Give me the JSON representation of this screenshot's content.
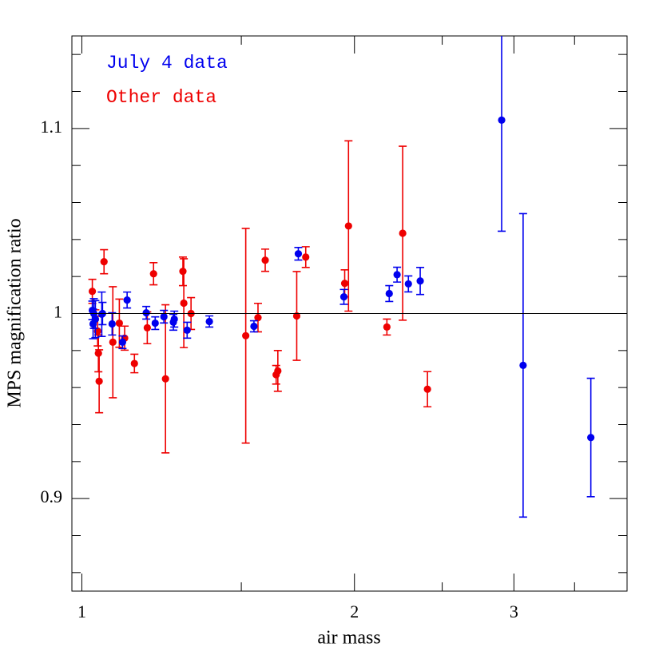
{
  "chart_data": {
    "type": "scatter",
    "x_label": "air mass",
    "y_label": "MPS magnification ratio",
    "xlim": [
      0.975,
      4
    ],
    "ylim": [
      0.85,
      1.15
    ],
    "xscale": "log",
    "xticks": [
      1,
      2,
      3
    ],
    "xminorticks": [
      1.5,
      2.5,
      3.5
    ],
    "yticks": [
      0.9,
      1,
      1.1
    ],
    "yminorticks": [
      0.86,
      0.88,
      0.92,
      0.94,
      0.96,
      0.98,
      1.02,
      1.04,
      1.06,
      1.08,
      1.12,
      1.14
    ],
    "hline": 1,
    "legend": "upper left",
    "series": [
      {
        "name": "July 4 data",
        "color": "#0000ee",
        "x": [
          1.027,
          1.029,
          1.031,
          1.035,
          1.052,
          1.054,
          1.08,
          1.109,
          1.122,
          1.178,
          1.205,
          1.232,
          1.262,
          1.265,
          1.307,
          1.383,
          1.549,
          1.734,
          1.947,
          2.185,
          2.229,
          2.294,
          2.364,
          2.908,
          3.071,
          3.648
        ],
        "values": [
          1.0017,
          0.9944,
          1.0,
          0.997,
          0.9996,
          1.0,
          0.9944,
          0.9845,
          1.0073,
          1.0004,
          0.9948,
          0.9983,
          0.9953,
          0.997,
          0.991,
          0.9957,
          0.9931,
          1.0323,
          1.009,
          1.0108,
          1.021,
          1.016,
          1.0176,
          1.1045,
          0.972,
          0.933
        ],
        "errors": [
          0.005,
          0.008,
          0.008,
          0.01,
          0.012,
          0.006,
          0.006,
          0.0034,
          0.0043,
          0.0034,
          0.0034,
          0.0034,
          0.0043,
          0.0043,
          0.0043,
          0.003,
          0.003,
          0.0034,
          0.004,
          0.0043,
          0.004,
          0.0043,
          0.0073,
          0.06,
          0.082,
          0.032
        ]
      },
      {
        "name": "Other data",
        "color": "#ee0000",
        "x": [
          1.027,
          1.035,
          1.041,
          1.043,
          1.045,
          1.058,
          1.082,
          1.1,
          1.115,
          1.143,
          1.181,
          1.2,
          1.237,
          1.293,
          1.296,
          1.32,
          1.517,
          1.565,
          1.594,
          1.639,
          1.646,
          1.727,
          1.767,
          1.951,
          1.97,
          2.172,
          2.261,
          2.408
        ],
        "values": [
          1.012,
          0.997,
          0.9905,
          0.9785,
          0.9634,
          1.028,
          0.9845,
          0.9948,
          0.9867,
          0.973,
          0.9923,
          1.0215,
          0.9647,
          1.0228,
          1.0056,
          1.0,
          0.988,
          0.9978,
          1.0288,
          0.9669,
          0.969,
          0.9987,
          1.0305,
          1.0163,
          1.0473,
          0.9927,
          1.0434,
          0.9591
        ],
        "errors": [
          0.0065,
          0.005,
          0.008,
          0.01,
          0.017,
          0.0065,
          0.03,
          0.013,
          0.0065,
          0.005,
          0.0086,
          0.006,
          0.04,
          0.0077,
          0.024,
          0.0086,
          0.058,
          0.0077,
          0.006,
          0.005,
          0.011,
          0.024,
          0.0056,
          0.0073,
          0.046,
          0.0043,
          0.047,
          0.0095
        ]
      }
    ]
  }
}
